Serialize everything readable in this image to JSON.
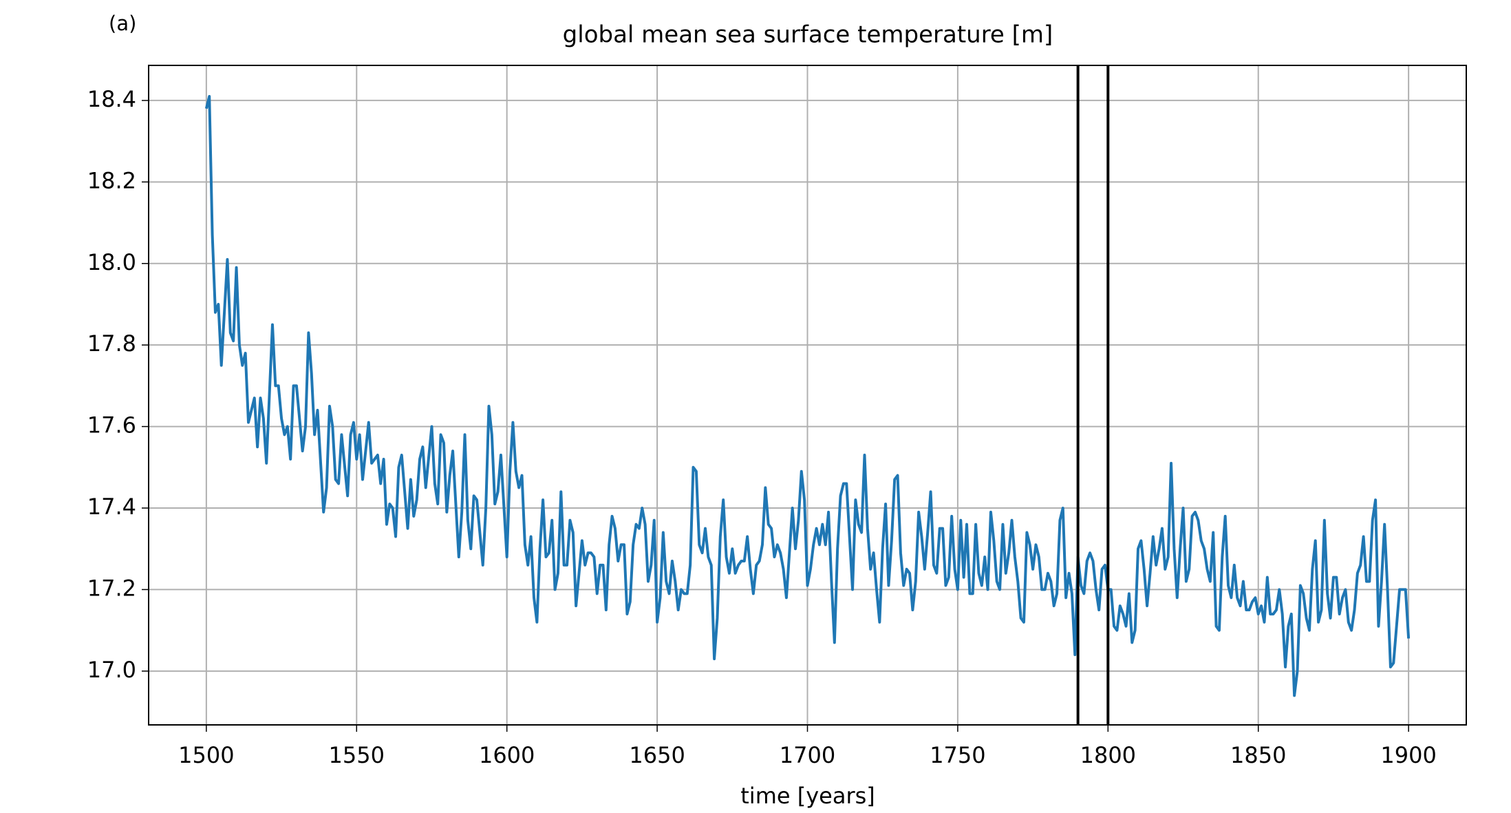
{
  "chart_data": {
    "type": "line",
    "title": "global mean sea surface temperature [m]",
    "annotation": "(a)",
    "xlabel": "time [years]",
    "color": "#1f77b4",
    "vlines": [
      1790,
      1800
    ],
    "vline_color": "#000000",
    "grid": true,
    "xlim": [
      1480.8,
      1919.2
    ],
    "ylim": [
      16.868,
      18.486
    ],
    "xticks": [
      1500,
      1550,
      1600,
      1650,
      1700,
      1750,
      1800,
      1850,
      1900
    ],
    "yticks": [
      {
        "value": 17,
        "label": "17.0"
      },
      17.2,
      17.4,
      17.6,
      17.8,
      {
        "value": 18,
        "label": "18.0"
      },
      18.2,
      18.4
    ],
    "x": [
      1500,
      1501,
      1502,
      1503,
      1504,
      1505,
      1507,
      1508,
      1509,
      1510,
      1511,
      1512,
      1513,
      1514,
      1516,
      1517,
      1518,
      1519,
      1520,
      1522,
      1523,
      1524,
      1525,
      1526,
      1527,
      1528,
      1529,
      1530,
      1532,
      1533,
      1534,
      1535,
      1536,
      1537,
      1539,
      1540,
      1541,
      1542,
      1543,
      1544,
      1545,
      1547,
      1548,
      1549,
      1550,
      1551,
      1552,
      1554,
      1555,
      1556,
      1557,
      1558,
      1559,
      1560,
      1561,
      1562,
      1563,
      1564,
      1565,
      1567,
      1568,
      1569,
      1570,
      1571,
      1572,
      1573,
      1575,
      1576,
      1577,
      1578,
      1579,
      1580,
      1581,
      1582,
      1584,
      1585,
      1586,
      1587,
      1588,
      1589,
      1590,
      1592,
      1593,
      1594,
      1595,
      1596,
      1597,
      1598,
      1600,
      1601,
      1602,
      1603,
      1604,
      1605,
      1606,
      1607,
      1608,
      1609,
      1610,
      1611,
      1612,
      1613,
      1614,
      1615,
      1616,
      1617,
      1618,
      1619,
      1620,
      1621,
      1622,
      1623,
      1625,
      1626,
      1627,
      1628,
      1629,
      1630,
      1631,
      1632,
      1633,
      1634,
      1635,
      1636,
      1637,
      1638,
      1639,
      1640,
      1641,
      1642,
      1643,
      1644,
      1645,
      1646,
      1647,
      1648,
      1649,
      1650,
      1651,
      1652,
      1653,
      1654,
      1655,
      1656,
      1657,
      1658,
      1659,
      1660,
      1661,
      1662,
      1663,
      1664,
      1665,
      1666,
      1667,
      1668,
      1669,
      1670,
      1671,
      1672,
      1673,
      1674,
      1675,
      1676,
      1677,
      1678,
      1679,
      1680,
      1681,
      1682,
      1683,
      1684,
      1685,
      1686,
      1687,
      1688,
      1689,
      1690,
      1691,
      1692,
      1693,
      1694,
      1695,
      1696,
      1697,
      1698,
      1699,
      1700,
      1701,
      1702,
      1703,
      1704,
      1705,
      1706,
      1707,
      1708,
      1709,
      1710,
      1711,
      1712,
      1713,
      1714,
      1715,
      1716,
      1717,
      1718,
      1719,
      1720,
      1721,
      1722,
      1723,
      1724,
      1725,
      1726,
      1727,
      1728,
      1729,
      1730,
      1731,
      1732,
      1733,
      1734,
      1735,
      1736,
      1737,
      1738,
      1739,
      1740,
      1741,
      1742,
      1743,
      1744,
      1745,
      1746,
      1747,
      1748,
      1749,
      1750,
      1751,
      1752,
      1753,
      1754,
      1755,
      1756,
      1757,
      1758,
      1759,
      1760,
      1761,
      1762,
      1763,
      1764,
      1765,
      1766,
      1767,
      1768,
      1769,
      1770,
      1771,
      1772,
      1773,
      1774,
      1775,
      1776,
      1777,
      1778,
      1779,
      1780,
      1781,
      1782,
      1783,
      1784,
      1785,
      1786,
      1787,
      1788,
      1789,
      1790,
      1791,
      1792,
      1793,
      1794,
      1795,
      1796,
      1797,
      1798,
      1799,
      1800,
      1801,
      1802,
      1803,
      1804,
      1805,
      1806,
      1807,
      1808,
      1809,
      1810,
      1811,
      1812,
      1813,
      1814,
      1815,
      1816,
      1817,
      1818,
      1819,
      1820,
      1821,
      1822,
      1823,
      1824,
      1825,
      1826,
      1827,
      1828,
      1829,
      1830,
      1831,
      1832,
      1833,
      1834,
      1835,
      1836,
      1837,
      1838,
      1839,
      1840,
      1841,
      1842,
      1843,
      1844,
      1845,
      1846,
      1847,
      1848,
      1849,
      1850,
      1851,
      1852,
      1853,
      1854,
      1855,
      1856,
      1857,
      1858,
      1859,
      1860,
      1861,
      1862,
      1863,
      1864,
      1865,
      1866,
      1867,
      1868,
      1869,
      1870,
      1871,
      1872,
      1873,
      1874,
      1875,
      1876,
      1877,
      1878,
      1879,
      1880,
      1881,
      1882,
      1883,
      1884,
      1885,
      1886,
      1887,
      1888,
      1889,
      1890,
      1891,
      1892,
      1893,
      1894,
      1895,
      1897,
      1899,
      1900
    ],
    "values": [
      18.38,
      18.41,
      18.07,
      17.88,
      17.9,
      17.75,
      18.01,
      17.83,
      17.81,
      17.99,
      17.8,
      17.75,
      17.78,
      17.61,
      17.67,
      17.55,
      17.67,
      17.62,
      17.51,
      17.85,
      17.7,
      17.7,
      17.62,
      17.58,
      17.6,
      17.52,
      17.7,
      17.7,
      17.54,
      17.6,
      17.83,
      17.73,
      17.58,
      17.64,
      17.39,
      17.45,
      17.65,
      17.6,
      17.47,
      17.46,
      17.58,
      17.43,
      17.58,
      17.61,
      17.52,
      17.58,
      17.47,
      17.61,
      17.51,
      17.52,
      17.53,
      17.46,
      17.52,
      17.36,
      17.41,
      17.4,
      17.33,
      17.5,
      17.53,
      17.35,
      17.47,
      17.38,
      17.42,
      17.52,
      17.55,
      17.45,
      17.6,
      17.46,
      17.41,
      17.58,
      17.56,
      17.39,
      17.48,
      17.54,
      17.28,
      17.39,
      17.58,
      17.37,
      17.3,
      17.43,
      17.42,
      17.26,
      17.4,
      17.65,
      17.58,
      17.41,
      17.44,
      17.53,
      17.28,
      17.49,
      17.61,
      17.49,
      17.45,
      17.48,
      17.31,
      17.26,
      17.33,
      17.18,
      17.12,
      17.3,
      17.42,
      17.28,
      17.29,
      17.37,
      17.2,
      17.24,
      17.44,
      17.26,
      17.26,
      17.37,
      17.34,
      17.16,
      17.32,
      17.26,
      17.29,
      17.29,
      17.28,
      17.19,
      17.26,
      17.26,
      17.15,
      17.31,
      17.38,
      17.35,
      17.27,
      17.31,
      17.31,
      17.14,
      17.17,
      17.31,
      17.36,
      17.35,
      17.4,
      17.36,
      17.22,
      17.26,
      17.37,
      17.12,
      17.18,
      17.34,
      17.22,
      17.19,
      17.27,
      17.22,
      17.15,
      17.2,
      17.19,
      17.19,
      17.26,
      17.5,
      17.49,
      17.31,
      17.29,
      17.35,
      17.28,
      17.26,
      17.03,
      17.13,
      17.33,
      17.42,
      17.28,
      17.24,
      17.3,
      17.24,
      17.26,
      17.27,
      17.27,
      17.33,
      17.25,
      17.19,
      17.26,
      17.27,
      17.31,
      17.45,
      17.36,
      17.35,
      17.28,
      17.31,
      17.29,
      17.25,
      17.18,
      17.29,
      17.4,
      17.3,
      17.37,
      17.49,
      17.42,
      17.21,
      17.25,
      17.31,
      17.35,
      17.31,
      17.36,
      17.31,
      17.39,
      17.22,
      17.07,
      17.3,
      17.43,
      17.46,
      17.46,
      17.33,
      17.2,
      17.42,
      17.36,
      17.34,
      17.53,
      17.35,
      17.25,
      17.29,
      17.2,
      17.12,
      17.3,
      17.41,
      17.21,
      17.32,
      17.47,
      17.48,
      17.29,
      17.21,
      17.25,
      17.24,
      17.15,
      17.22,
      17.39,
      17.33,
      17.25,
      17.34,
      17.44,
      17.26,
      17.24,
      17.35,
      17.35,
      17.21,
      17.23,
      17.38,
      17.25,
      17.2,
      17.37,
      17.23,
      17.36,
      17.19,
      17.19,
      17.36,
      17.24,
      17.21,
      17.28,
      17.2,
      17.39,
      17.32,
      17.22,
      17.2,
      17.36,
      17.24,
      17.29,
      17.37,
      17.28,
      17.22,
      17.13,
      17.12,
      17.34,
      17.31,
      17.25,
      17.31,
      17.28,
      17.2,
      17.2,
      17.24,
      17.22,
      17.16,
      17.19,
      17.37,
      17.4,
      17.18,
      17.24,
      17.19,
      17.04,
      17.28,
      17.21,
      17.19,
      17.27,
      17.29,
      17.27,
      17.2,
      17.15,
      17.25,
      17.26,
      17.2,
      17.2,
      17.11,
      17.1,
      17.16,
      17.14,
      17.11,
      17.19,
      17.07,
      17.1,
      17.3,
      17.32,
      17.25,
      17.16,
      17.24,
      17.33,
      17.26,
      17.3,
      17.35,
      17.25,
      17.28,
      17.51,
      17.3,
      17.18,
      17.3,
      17.4,
      17.22,
      17.25,
      17.38,
      17.39,
      17.37,
      17.32,
      17.3,
      17.25,
      17.22,
      17.34,
      17.11,
      17.1,
      17.28,
      17.38,
      17.21,
      17.18,
      17.26,
      17.18,
      17.16,
      17.22,
      17.15,
      17.15,
      17.17,
      17.18,
      17.14,
      17.16,
      17.12,
      17.23,
      17.14,
      17.14,
      17.15,
      17.2,
      17.14,
      17.01,
      17.11,
      17.14,
      16.94,
      17.0,
      17.21,
      17.19,
      17.13,
      17.1,
      17.25,
      17.32,
      17.12,
      17.15,
      17.37,
      17.19,
      17.13,
      17.23,
      17.23,
      17.14,
      17.18,
      17.2,
      17.12,
      17.1,
      17.15,
      17.24,
      17.26,
      17.33,
      17.22,
      17.22,
      17.37,
      17.42,
      17.11,
      17.22,
      17.36,
      17.2,
      17.01,
      17.02,
      17.2,
      17.2,
      17.08
    ]
  }
}
